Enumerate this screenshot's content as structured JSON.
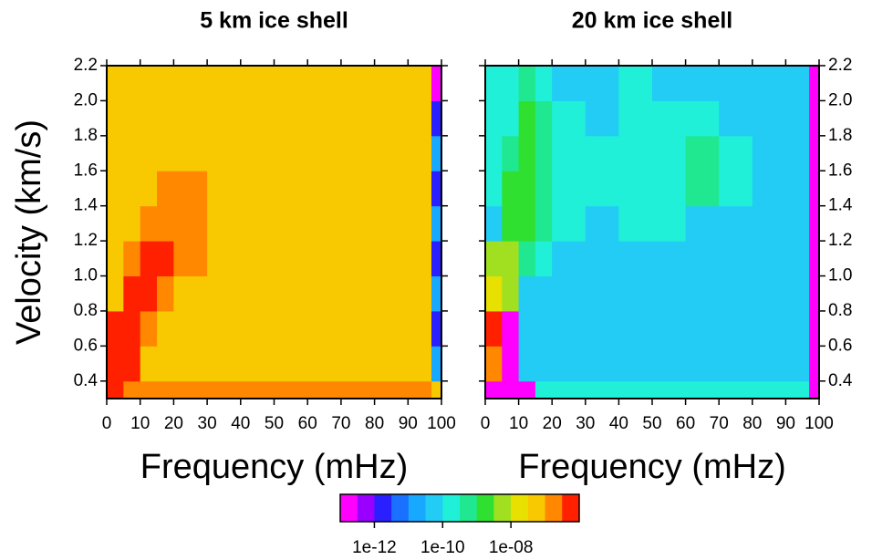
{
  "chart_data": [
    {
      "type": "heatmap",
      "title": "5 km ice shell",
      "xlabel": "Frequency (mHz)",
      "ylabel": "Velocity (km/s)",
      "ytick_side": "left",
      "xlim": [
        0,
        100
      ],
      "ylim": [
        0.3,
        2.2
      ],
      "xticks": [
        0,
        10,
        20,
        30,
        40,
        50,
        60,
        70,
        80,
        90,
        100
      ],
      "yticks": [
        0.4,
        0.6,
        0.8,
        {
          "value": 1,
          "label": "1.0"
        },
        1.2,
        1.4,
        1.6,
        1.8,
        {
          "value": 2,
          "label": "2.0"
        },
        2.2
      ],
      "xbins": [
        0,
        5,
        10,
        15,
        20,
        30,
        40,
        50,
        60,
        70,
        80,
        90,
        97,
        100
      ],
      "ybins": [
        0.3,
        0.4,
        0.6,
        0.8,
        1.0,
        1.2,
        1.4,
        1.6,
        1.8,
        2.0,
        2.2
      ],
      "values": [
        [
          5e-07,
          3e-07,
          1.5e-07,
          1.5e-07,
          1.5e-07,
          1.5e-07,
          1.5e-07,
          1.5e-07,
          1.5e-07,
          1.5e-07,
          1.5e-07,
          1.5e-07,
          5e-08
        ],
        [
          5e-07,
          5e-07,
          5e-08,
          5e-08,
          5e-08,
          5e-08,
          5e-08,
          5e-08,
          5e-08,
          5e-08,
          5e-08,
          5e-08,
          1.5e-11
        ],
        [
          5e-07,
          5e-07,
          1.5e-07,
          5e-08,
          5e-08,
          5e-08,
          5e-08,
          5e-08,
          5e-08,
          5e-08,
          5e-08,
          5e-08,
          3e-12
        ],
        [
          5e-08,
          5e-07,
          5e-07,
          1.5e-07,
          5e-08,
          5e-08,
          5e-08,
          5e-08,
          5e-08,
          5e-08,
          5e-08,
          5e-08,
          1.5e-11
        ],
        [
          5e-08,
          1.5e-07,
          5e-07,
          5e-07,
          1.5e-07,
          5e-08,
          5e-08,
          5e-08,
          5e-08,
          5e-08,
          5e-08,
          5e-08,
          3e-12
        ],
        [
          5e-08,
          5e-08,
          1.5e-07,
          3e-07,
          3e-07,
          8e-08,
          5e-08,
          5e-08,
          5e-08,
          5e-08,
          5e-08,
          5e-08,
          1.5e-11
        ],
        [
          5e-08,
          5e-08,
          5e-08,
          1.5e-07,
          1.5e-07,
          8e-08,
          5e-08,
          5e-08,
          5e-08,
          5e-08,
          5e-08,
          5e-08,
          3e-12
        ],
        [
          5e-08,
          5e-08,
          5e-08,
          5e-08,
          8e-08,
          8e-08,
          8e-08,
          5e-08,
          5e-08,
          5e-08,
          5e-08,
          5e-08,
          1.5e-11
        ],
        [
          5e-08,
          5e-08,
          5e-08,
          5e-08,
          5e-08,
          5e-08,
          5e-08,
          5e-08,
          5e-08,
          5e-08,
          5e-08,
          5e-08,
          3e-12
        ],
        [
          5e-08,
          5e-08,
          5e-08,
          5e-08,
          5e-08,
          5e-08,
          5e-08,
          5e-08,
          5e-08,
          5e-08,
          5e-08,
          5e-08,
          1e-13
        ]
      ]
    },
    {
      "type": "heatmap",
      "title": "20 km ice shell",
      "xlabel": "Frequency (mHz)",
      "ytick_side": "right",
      "xlim": [
        0,
        100
      ],
      "ylim": [
        0.3,
        2.2
      ],
      "xticks": [
        0,
        10,
        20,
        30,
        40,
        50,
        60,
        70,
        80,
        90,
        100
      ],
      "yticks": [
        0.4,
        0.6,
        0.8,
        {
          "value": 1,
          "label": "1.0"
        },
        1.2,
        1.4,
        1.6,
        1.8,
        {
          "value": 2,
          "label": "2.0"
        },
        2.2
      ],
      "xbins": [
        0,
        5,
        10,
        15,
        20,
        30,
        40,
        50,
        60,
        70,
        80,
        90,
        97,
        100
      ],
      "ybins": [
        0.3,
        0.4,
        0.6,
        0.8,
        1.0,
        1.2,
        1.4,
        1.6,
        1.8,
        2.0,
        2.2
      ],
      "values": [
        [
          1e-13,
          1e-13,
          1e-13,
          1.5e-10,
          1.5e-10,
          1.5e-10,
          1.5e-10,
          1.5e-10,
          1.5e-10,
          1.5e-10,
          1.5e-10,
          1.5e-10,
          1e-13
        ],
        [
          1.5e-07,
          1e-13,
          4e-11,
          4e-11,
          4e-11,
          4e-11,
          4e-11,
          4e-11,
          4e-11,
          4e-11,
          4e-11,
          4e-11,
          1e-13
        ],
        [
          5e-07,
          1e-13,
          4e-11,
          4e-11,
          4e-11,
          4e-11,
          4e-11,
          4e-11,
          4e-11,
          4e-11,
          4e-11,
          4e-11,
          1e-13
        ],
        [
          2e-08,
          5e-09,
          4e-11,
          4e-11,
          4e-11,
          4e-11,
          4e-11,
          4e-11,
          4e-11,
          4e-11,
          4e-11,
          4e-11,
          1e-13
        ],
        [
          5e-09,
          5e-09,
          5e-10,
          1.5e-10,
          4e-11,
          4e-11,
          4e-11,
          4e-11,
          4e-11,
          4e-11,
          4e-11,
          4e-11,
          1e-13
        ],
        [
          4e-11,
          1.5e-09,
          1.5e-09,
          5e-10,
          1.5e-10,
          4e-11,
          1.5e-10,
          1.5e-10,
          4e-11,
          4e-11,
          4e-11,
          4e-11,
          1e-13
        ],
        [
          1.5e-10,
          1.5e-09,
          2e-09,
          5e-10,
          1.5e-10,
          1.5e-10,
          1.5e-10,
          1.5e-10,
          5e-10,
          1.5e-10,
          4e-11,
          4e-11,
          1e-13
        ],
        [
          1.5e-10,
          5e-10,
          2e-09,
          5e-10,
          1.5e-10,
          1.5e-10,
          1.5e-10,
          1.5e-10,
          5e-10,
          1.5e-10,
          4e-11,
          4e-11,
          1e-13
        ],
        [
          1.5e-10,
          1.5e-10,
          1.5e-09,
          5e-10,
          1.5e-10,
          4e-11,
          1.5e-10,
          1.5e-10,
          1.5e-10,
          4e-11,
          4e-11,
          4e-11,
          1e-13
        ],
        [
          1.5e-10,
          1.5e-10,
          5e-10,
          1.5e-10,
          4e-11,
          4e-11,
          1.5e-10,
          4e-11,
          4e-11,
          4e-11,
          4e-11,
          4e-11,
          1e-13
        ]
      ]
    }
  ],
  "colorbar": {
    "log": true,
    "lim": [
      1e-13,
      1e-06
    ],
    "ticks": [
      {
        "value": 1e-12,
        "label": "1e-12"
      },
      {
        "value": 1e-10,
        "label": "1e-10"
      },
      {
        "value": 1e-08,
        "label": "1e-08"
      }
    ],
    "colors": [
      "#ff00ff",
      "#9a00ff",
      "#2a20ff",
      "#1a70ff",
      "#18a8ff",
      "#22ccf5",
      "#20f0d8",
      "#20e890",
      "#30e030",
      "#a0e020",
      "#e8e000",
      "#f8c800",
      "#ff8800",
      "#ff2000"
    ]
  }
}
